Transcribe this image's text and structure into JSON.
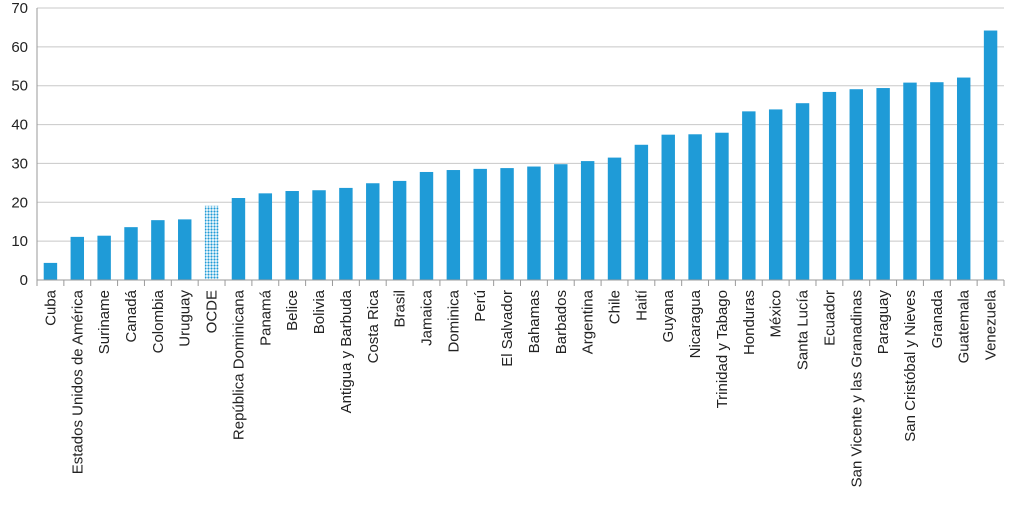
{
  "chart_data": {
    "type": "bar",
    "title": "",
    "xlabel": "",
    "ylabel": "",
    "ylim": [
      0,
      70
    ],
    "yticks": [
      0,
      10,
      20,
      30,
      40,
      50,
      60,
      70
    ],
    "grid": true,
    "legend": "none",
    "bar_color": "#1f9bd7",
    "highlight_color": "#1f9bd7",
    "highlight_pattern": "dotted",
    "highlight_category": "OCDE",
    "categories": [
      "Cuba",
      "Estados Unidos de América",
      "Suriname",
      "Canadá",
      "Colombia",
      "Uruguay",
      "OCDE",
      "República Dominicana",
      "Panamá",
      "Belice",
      "Bolivia",
      "Antigua y Barbuda",
      "Costa Rica",
      "Brasil",
      "Jamaica",
      "Dominica",
      "Perú",
      "El Salvador",
      "Bahamas",
      "Barbados",
      "Argentina",
      "Chile",
      "Haití",
      "Guyana",
      "Nicaragua",
      "Trinidad y Tabago",
      "Honduras",
      "México",
      "Santa Lucía",
      "Ecuador",
      "San Vicente y las Granadinas",
      "Paraguay",
      "San Cristóbal y Nieves",
      "Granada",
      "Guatemala",
      "Venezuela"
    ],
    "values": [
      4.4,
      11.1,
      11.4,
      13.6,
      15.4,
      15.6,
      19.1,
      21.1,
      22.3,
      22.9,
      23.1,
      23.7,
      24.9,
      25.5,
      27.8,
      28.3,
      28.6,
      28.8,
      29.2,
      29.8,
      30.6,
      31.5,
      34.8,
      37.4,
      37.5,
      37.9,
      43.4,
      43.9,
      45.5,
      48.4,
      49.1,
      49.4,
      50.8,
      50.9,
      52.1,
      64.2
    ]
  }
}
